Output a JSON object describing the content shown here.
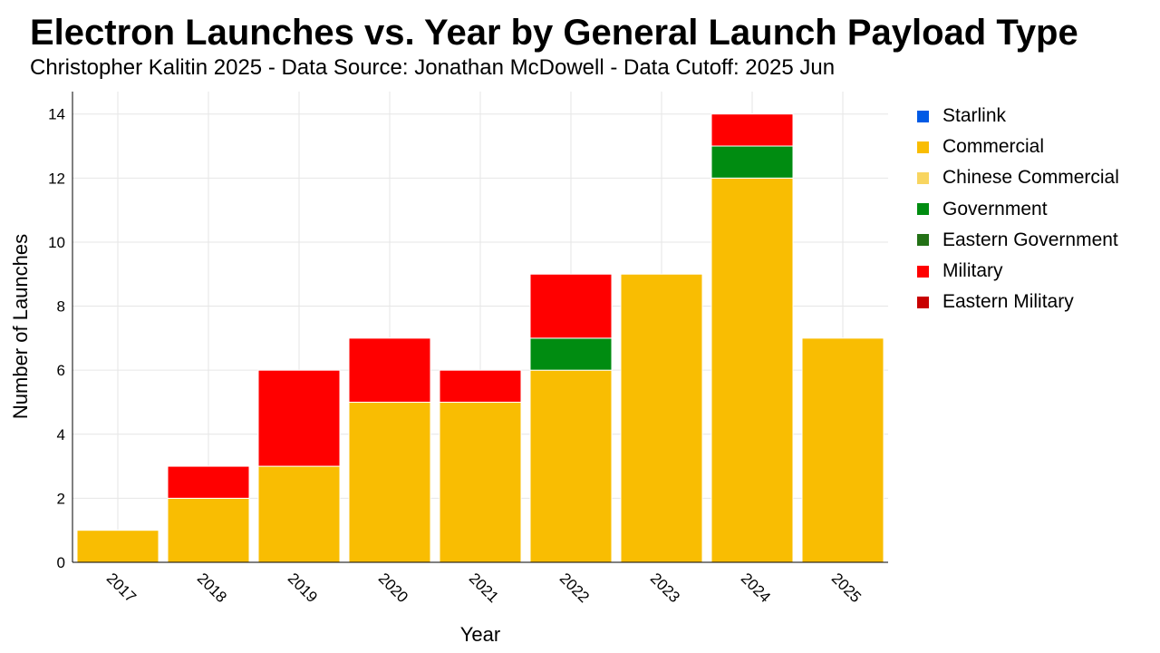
{
  "header": {
    "title": "Electron Launches vs. Year by General Launch Payload Type",
    "subtitle": "Christopher Kalitin 2025 - Data Source: Jonathan McDowell - Data Cutoff: 2025 Jun"
  },
  "legend": [
    {
      "label": "Starlink",
      "color": "#005ae5"
    },
    {
      "label": "Commercial",
      "color": "#f9bd02"
    },
    {
      "label": "Chinese Commercial",
      "color": "#f8d560"
    },
    {
      "label": "Government",
      "color": "#008c11"
    },
    {
      "label": "Eastern Government",
      "color": "#237116"
    },
    {
      "label": "Military",
      "color": "#ff0000"
    },
    {
      "label": "Eastern Military",
      "color": "#c80000"
    }
  ],
  "chart_data": {
    "type": "bar",
    "stacked": true,
    "title": "Electron Launches vs. Year by General Launch Payload Type",
    "subtitle": "Christopher Kalitin 2025 - Data Source: Jonathan McDowell - Data Cutoff: 2025 Jun",
    "xlabel": "Year",
    "ylabel": "Number of Launches",
    "categories": [
      "2017",
      "2018",
      "2019",
      "2020",
      "2021",
      "2022",
      "2023",
      "2024",
      "2025"
    ],
    "ylim": [
      0,
      14.7
    ],
    "yticks": [
      0,
      2,
      4,
      6,
      8,
      10,
      12,
      14
    ],
    "grid": true,
    "legend_position": "right",
    "series": [
      {
        "name": "Starlink",
        "color": "#005ae5",
        "values": [
          0,
          0,
          0,
          0,
          0,
          0,
          0,
          0,
          0
        ]
      },
      {
        "name": "Commercial",
        "color": "#f9bd02",
        "values": [
          1,
          2,
          3,
          5,
          5,
          6,
          9,
          12,
          7
        ]
      },
      {
        "name": "Chinese Commercial",
        "color": "#f8d560",
        "values": [
          0,
          0,
          0,
          0,
          0,
          0,
          0,
          0,
          0
        ]
      },
      {
        "name": "Government",
        "color": "#008c11",
        "values": [
          0,
          0,
          0,
          0,
          0,
          1,
          0,
          1,
          0
        ]
      },
      {
        "name": "Eastern Government",
        "color": "#237116",
        "values": [
          0,
          0,
          0,
          0,
          0,
          0,
          0,
          0,
          0
        ]
      },
      {
        "name": "Military",
        "color": "#ff0000",
        "values": [
          0,
          1,
          3,
          2,
          1,
          2,
          0,
          1,
          0
        ]
      },
      {
        "name": "Eastern Military",
        "color": "#c80000",
        "values": [
          0,
          0,
          0,
          0,
          0,
          0,
          0,
          0,
          0
        ]
      }
    ]
  }
}
